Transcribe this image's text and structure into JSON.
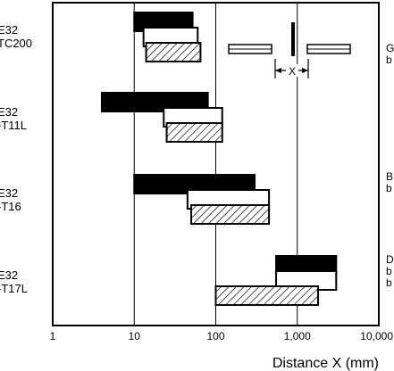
{
  "chart_data": {
    "type": "bar",
    "orientation": "horizontal",
    "x_scale": "log",
    "xlim": [
      1,
      10000
    ],
    "x_ticks": [
      {
        "value": 1,
        "label": "1"
      },
      {
        "value": 10,
        "label": "10"
      },
      {
        "value": 100,
        "label": "100"
      },
      {
        "value": 1000,
        "label": "1,000"
      },
      {
        "value": 10000,
        "label": "10,000"
      }
    ],
    "xlabel": "Distance X (mm)",
    "categories": [
      "E32\nTC200",
      "E32\n-T11L",
      "E32\n-T16",
      "E32\n-T17L"
    ],
    "right_notes": [
      "G\nb",
      "B\nb",
      "D\nb\nb"
    ],
    "series": [
      {
        "fill": "black",
        "values": [
          [
            10,
            52
          ],
          [
            4,
            80
          ],
          [
            10,
            300
          ],
          [
            550,
            3000
          ]
        ]
      },
      {
        "fill": "white",
        "values": [
          [
            13,
            60
          ],
          [
            23,
            120
          ],
          [
            45,
            450
          ],
          [
            550,
            3000
          ]
        ]
      },
      {
        "fill": "hatched",
        "values": [
          [
            14,
            65
          ],
          [
            25,
            120
          ],
          [
            50,
            450
          ],
          [
            100,
            1800
          ]
        ]
      }
    ],
    "gridlines": [
      10,
      100,
      1000
    ],
    "inset": {
      "label": "X"
    }
  }
}
